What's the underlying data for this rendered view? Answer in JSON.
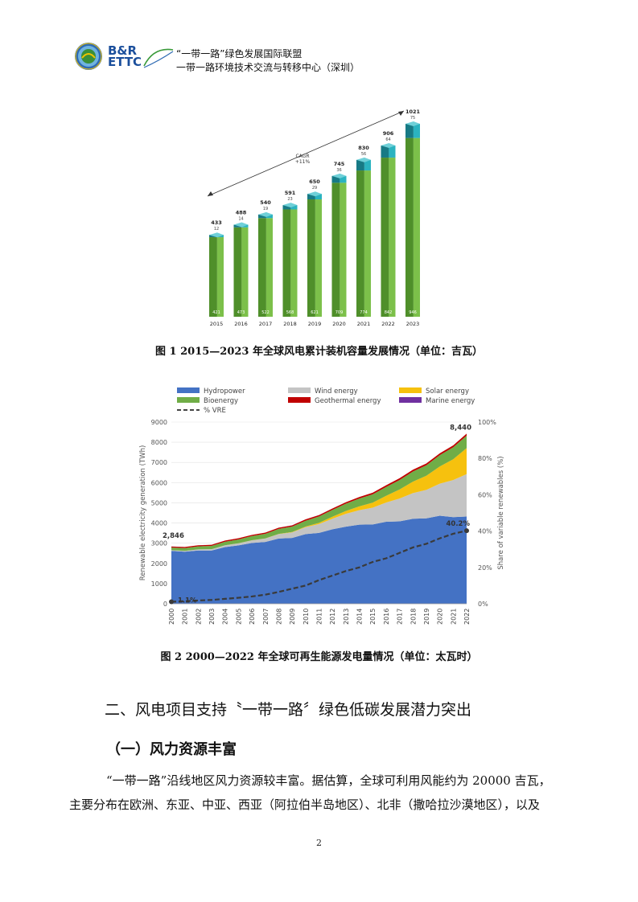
{
  "header": {
    "logo_text_line1": "B&R",
    "logo_text_line2": "ETTC",
    "org_line1": "“一带一路”绿色发展国际联盟",
    "org_line2": "一带一路环境技术交流与转移中心（深圳）"
  },
  "figure1": {
    "caption": "图 1 2015—2023 年全球风电累计装机容量发展情况（单位：吉瓦）",
    "annotation": "CAGR\n+11%",
    "chart_data": {
      "type": "bar",
      "categories": [
        "2015",
        "2016",
        "2017",
        "2018",
        "2019",
        "2020",
        "2021",
        "2022",
        "2023"
      ],
      "totals": [
        433,
        488,
        540,
        591,
        650,
        745,
        830,
        906,
        1021
      ],
      "series": [
        {
          "name": "",
          "values": [
            421,
            473,
            522,
            568,
            621,
            709,
            774,
            842,
            946
          ],
          "color": "#5aa532"
        },
        {
          "name": "",
          "values": [
            12,
            14,
            19,
            23,
            29,
            36,
            56,
            64,
            75
          ],
          "color": "#1f9aa6"
        }
      ]
    }
  },
  "figure2": {
    "caption": "图 2 2000—2022 年全球可再生能源发电量情况（单位：太瓦时）",
    "chart_data": {
      "type": "area",
      "x": [
        "2000",
        "2001",
        "2002",
        "2003",
        "2004",
        "2005",
        "2006",
        "2007",
        "2008",
        "2009",
        "2010",
        "2011",
        "2012",
        "2013",
        "2014",
        "2015",
        "2016",
        "2017",
        "2018",
        "2019",
        "2020",
        "2021",
        "2022"
      ],
      "ylabel": "Renewable electricity generation (TWh)",
      "ylabel_right": "Share of variable renewables (%)",
      "ylim": [
        0,
        9000
      ],
      "yticks": [
        "0",
        "1000",
        "2000",
        "3000",
        "4000",
        "5000",
        "6000",
        "7000",
        "8000",
        "9000"
      ],
      "ylim_right": [
        0,
        100
      ],
      "yticks_right": [
        "0%",
        "20%",
        "40%",
        "60%",
        "80%",
        "100%"
      ],
      "start_label": "2,846",
      "end_label": "8,440",
      "vre_start_label": "1.1%",
      "vre_end_label": "40.2%",
      "legend": [
        {
          "name": "Hydropower",
          "color": "#4472c4"
        },
        {
          "name": "Wind energy",
          "color": "#c4c4c4"
        },
        {
          "name": "Solar energy",
          "color": "#f6c10e"
        },
        {
          "name": "Bioenergy",
          "color": "#70ad47"
        },
        {
          "name": "Geothermal energy",
          "color": "#c00000"
        },
        {
          "name": "Marine energy",
          "color": "#7030a0"
        },
        {
          "name": "% VRE",
          "color": "#444444"
        }
      ],
      "series": [
        {
          "name": "Hydropower",
          "color": "#4472c4",
          "values": [
            2620,
            2580,
            2640,
            2640,
            2810,
            2890,
            3010,
            3060,
            3230,
            3260,
            3450,
            3510,
            3690,
            3820,
            3920,
            3930,
            4060,
            4080,
            4210,
            4230,
            4360,
            4290,
            4320
          ]
        },
        {
          "name": "Wind energy",
          "color": "#c4c4c4",
          "values": [
            31,
            38,
            52,
            63,
            85,
            104,
            133,
            171,
            220,
            276,
            342,
            437,
            520,
            636,
            712,
            830,
            955,
            1130,
            1270,
            1410,
            1590,
            1840,
            2100
          ]
        },
        {
          "name": "Solar energy",
          "color": "#f6c10e",
          "values": [
            1,
            1,
            2,
            2,
            3,
            4,
            5,
            7,
            12,
            20,
            32,
            62,
            100,
            140,
            190,
            250,
            330,
            450,
            570,
            700,
            850,
            1030,
            1290
          ]
        },
        {
          "name": "Bioenergy",
          "color": "#70ad47",
          "values": [
            130,
            140,
            150,
            160,
            175,
            190,
            205,
            225,
            245,
            265,
            290,
            315,
            340,
            360,
            390,
            410,
            440,
            470,
            500,
            520,
            560,
            590,
            620
          ]
        },
        {
          "name": "Geothermal energy",
          "color": "#c00000",
          "values": [
            52,
            53,
            54,
            55,
            56,
            57,
            58,
            60,
            62,
            64,
            67,
            68,
            69,
            70,
            75,
            80,
            82,
            85,
            88,
            90,
            92,
            94,
            96
          ]
        },
        {
          "name": "Marine energy",
          "color": "#7030a0",
          "values": [
            1,
            1,
            1,
            1,
            1,
            1,
            1,
            1,
            1,
            1,
            1,
            1,
            1,
            1,
            1,
            1,
            1,
            1,
            1,
            1,
            1,
            1,
            1
          ]
        }
      ],
      "vre_pct": [
        1.1,
        1.4,
        1.8,
        2.1,
        2.7,
        3.3,
        4.0,
        5.0,
        6.5,
        8.3,
        10.0,
        13.0,
        15.5,
        18.0,
        20.0,
        23.0,
        25.0,
        28.0,
        31.0,
        33.0,
        36.0,
        38.5,
        40.2
      ]
    }
  },
  "section": {
    "title": "二、风电项目支持〝一带一路〞绿色低碳发展潜力突出",
    "subtitle": "（一）风力资源丰富",
    "para_line1": "“一带一路”沿线地区风力资源较丰富。据估算，全球可利用风能约为 20000 吉瓦，",
    "para_line2": "主要分布在欧洲、东亚、中亚、西亚（阿拉伯半岛地区）、北非（撒哈拉沙漠地区），以及"
  },
  "page_number": "2"
}
